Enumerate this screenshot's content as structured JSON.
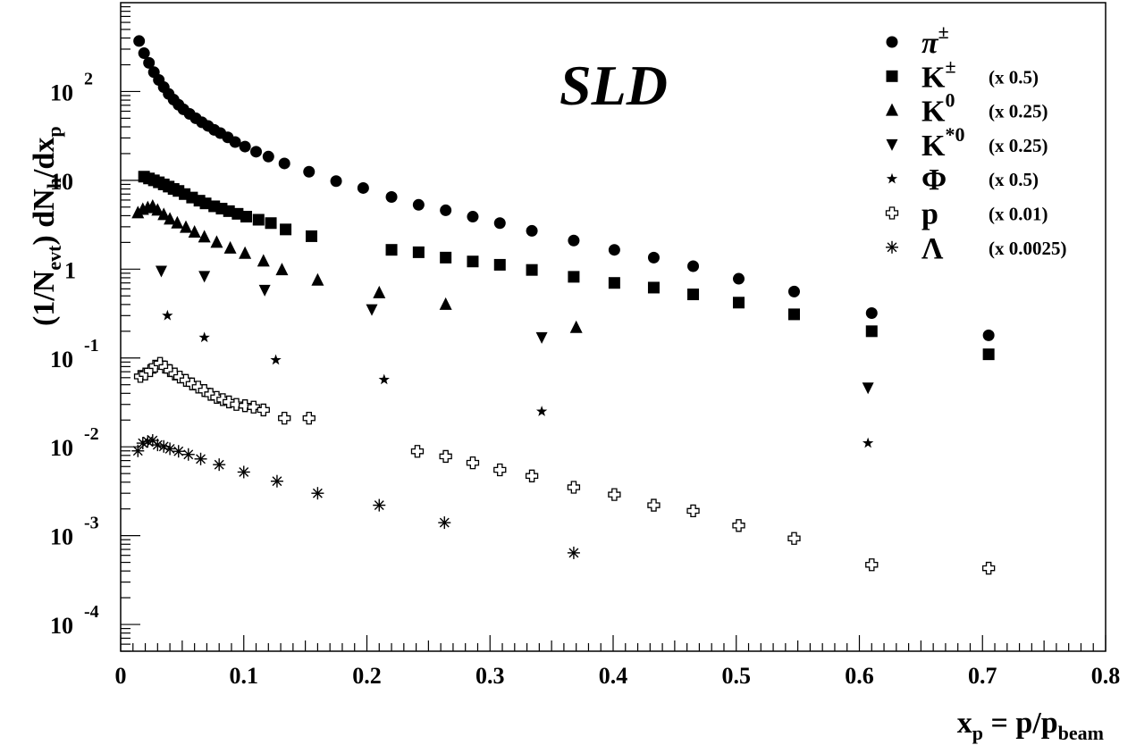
{
  "chart_data": {
    "type": "scatter",
    "experiment_label": "SLD",
    "y_scale": "log",
    "xlim": [
      0,
      0.8
    ],
    "ylim": [
      5e-05,
      1000
    ],
    "x_ticks": [
      {
        "value": 0,
        "label": "0"
      },
      {
        "value": 0.1,
        "label": "0.1"
      },
      {
        "value": 0.2,
        "label": "0.2"
      },
      {
        "value": 0.3,
        "label": "0.3"
      },
      {
        "value": 0.4,
        "label": "0.4"
      },
      {
        "value": 0.5,
        "label": "0.5"
      },
      {
        "value": 0.6,
        "label": "0.6"
      },
      {
        "value": 0.7,
        "label": "0.7"
      },
      {
        "value": 0.8,
        "label": "0.8"
      }
    ],
    "y_ticks": [
      {
        "value": 100,
        "label": "10",
        "exp": "2"
      },
      {
        "value": 10,
        "label": "10",
        "exp": ""
      },
      {
        "value": 1,
        "label": "1",
        "exp": ""
      },
      {
        "value": 0.1,
        "label": "10",
        "exp": "-1"
      },
      {
        "value": 0.01,
        "label": "10",
        "exp": "-2"
      },
      {
        "value": 0.001,
        "label": "10",
        "exp": "-3"
      },
      {
        "value": 0.0001,
        "label": "10",
        "exp": "-4"
      }
    ],
    "ylabel": {
      "main": "(1/N",
      "sub1": "evt",
      "mid": ") dN",
      "sub2": "h",
      "mid2": "/dx",
      "sub3": "p"
    },
    "xlabel": {
      "main": "x",
      "sub1": "p",
      "mid": " = p/p",
      "sub2": "beam"
    },
    "series": [
      {
        "name": "π",
        "sup": "±",
        "scale": "",
        "marker": "circle",
        "x": [
          0.015,
          0.019,
          0.023,
          0.027,
          0.031,
          0.035,
          0.039,
          0.043,
          0.047,
          0.051,
          0.056,
          0.061,
          0.066,
          0.071,
          0.076,
          0.081,
          0.087,
          0.093,
          0.101,
          0.11,
          0.12,
          0.133,
          0.153,
          0.175,
          0.197,
          0.22,
          0.242,
          0.264,
          0.286,
          0.308,
          0.334,
          0.368,
          0.401,
          0.433,
          0.465,
          0.502,
          0.547,
          0.61,
          0.705
        ],
        "y": [
          370,
          270,
          210,
          165,
          135,
          112,
          94,
          81,
          71,
          63,
          56,
          50,
          45,
          41,
          37,
          34,
          30.5,
          27,
          24,
          21,
          18.5,
          15.5,
          12.5,
          9.8,
          8.2,
          6.5,
          5.3,
          4.6,
          3.9,
          3.3,
          2.7,
          2.1,
          1.65,
          1.35,
          1.08,
          0.78,
          0.56,
          0.32,
          0.18
        ]
      },
      {
        "name": "K",
        "sup": "±",
        "scale": "(x 0.5)",
        "marker": "square",
        "x": [
          0.019,
          0.023,
          0.027,
          0.031,
          0.035,
          0.039,
          0.043,
          0.047,
          0.052,
          0.058,
          0.064,
          0.069,
          0.076,
          0.082,
          0.088,
          0.095,
          0.102,
          0.112,
          0.122,
          0.134,
          0.155,
          0.22,
          0.242,
          0.264,
          0.286,
          0.308,
          0.334,
          0.368,
          0.401,
          0.433,
          0.465,
          0.502,
          0.547,
          0.61,
          0.705
        ],
        "y": [
          11,
          10.5,
          10,
          9.5,
          9,
          8.5,
          8,
          7.6,
          7,
          6.4,
          5.9,
          5.5,
          5.1,
          4.8,
          4.5,
          4.2,
          3.9,
          3.6,
          3.3,
          2.8,
          2.35,
          1.65,
          1.55,
          1.35,
          1.22,
          1.12,
          0.98,
          0.82,
          0.7,
          0.62,
          0.52,
          0.42,
          0.31,
          0.2,
          0.11
        ]
      },
      {
        "name": "K",
        "sup": "0",
        "scale": "(x 0.25)",
        "marker": "triangle-up",
        "x": [
          0.014,
          0.018,
          0.022,
          0.026,
          0.03,
          0.035,
          0.04,
          0.046,
          0.053,
          0.06,
          0.068,
          0.078,
          0.089,
          0.101,
          0.116,
          0.131,
          0.16,
          0.21,
          0.264,
          0.37
        ],
        "y": [
          4.3,
          4.7,
          4.9,
          5.1,
          4.6,
          4.1,
          3.65,
          3.3,
          2.95,
          2.6,
          2.3,
          2.0,
          1.72,
          1.5,
          1.23,
          0.98,
          0.75,
          0.54,
          0.4,
          0.22
        ]
      },
      {
        "name": "K",
        "sup": "*0",
        "scale": "(x 0.25)",
        "marker": "triangle-down",
        "x": [
          0.033,
          0.068,
          0.117,
          0.204,
          0.342,
          0.607
        ],
        "y": [
          0.95,
          0.83,
          0.58,
          0.35,
          0.17,
          0.046
        ]
      },
      {
        "name": "Φ",
        "sup": "",
        "scale": "(x 0.5)",
        "marker": "star",
        "x": [
          0.038,
          0.068,
          0.126,
          0.214,
          0.342,
          0.607
        ],
        "y": [
          0.3,
          0.17,
          0.095,
          0.057,
          0.025,
          0.011
        ]
      },
      {
        "name": "p",
        "sup": "",
        "scale": "(x 0.01)",
        "marker": "open-cross",
        "x": [
          0.016,
          0.02,
          0.024,
          0.028,
          0.032,
          0.036,
          0.04,
          0.044,
          0.048,
          0.053,
          0.058,
          0.063,
          0.068,
          0.073,
          0.078,
          0.083,
          0.088,
          0.094,
          0.101,
          0.108,
          0.116,
          0.133,
          0.153,
          0.241,
          0.264,
          0.286,
          0.308,
          0.334,
          0.368,
          0.401,
          0.433,
          0.465,
          0.502,
          0.547,
          0.61,
          0.705
        ],
        "y": [
          0.062,
          0.066,
          0.072,
          0.081,
          0.087,
          0.079,
          0.072,
          0.066,
          0.061,
          0.056,
          0.051,
          0.047,
          0.043,
          0.039,
          0.036,
          0.034,
          0.032,
          0.03,
          0.029,
          0.028,
          0.026,
          0.021,
          0.021,
          0.0089,
          0.0078,
          0.0066,
          0.0055,
          0.0047,
          0.0035,
          0.0029,
          0.0022,
          0.0019,
          0.0013,
          0.00093,
          0.00047,
          0.00043
        ]
      },
      {
        "name": "Λ",
        "sup": "",
        "scale": "(x 0.0025)",
        "marker": "asterisk",
        "x": [
          0.014,
          0.018,
          0.022,
          0.026,
          0.03,
          0.035,
          0.04,
          0.047,
          0.055,
          0.065,
          0.08,
          0.1,
          0.127,
          0.16,
          0.21,
          0.263,
          0.368
        ],
        "y": [
          0.009,
          0.011,
          0.0115,
          0.0118,
          0.0105,
          0.0101,
          0.0095,
          0.0089,
          0.0082,
          0.0073,
          0.0063,
          0.0052,
          0.0041,
          0.003,
          0.0022,
          0.0014,
          0.00064
        ]
      }
    ]
  }
}
